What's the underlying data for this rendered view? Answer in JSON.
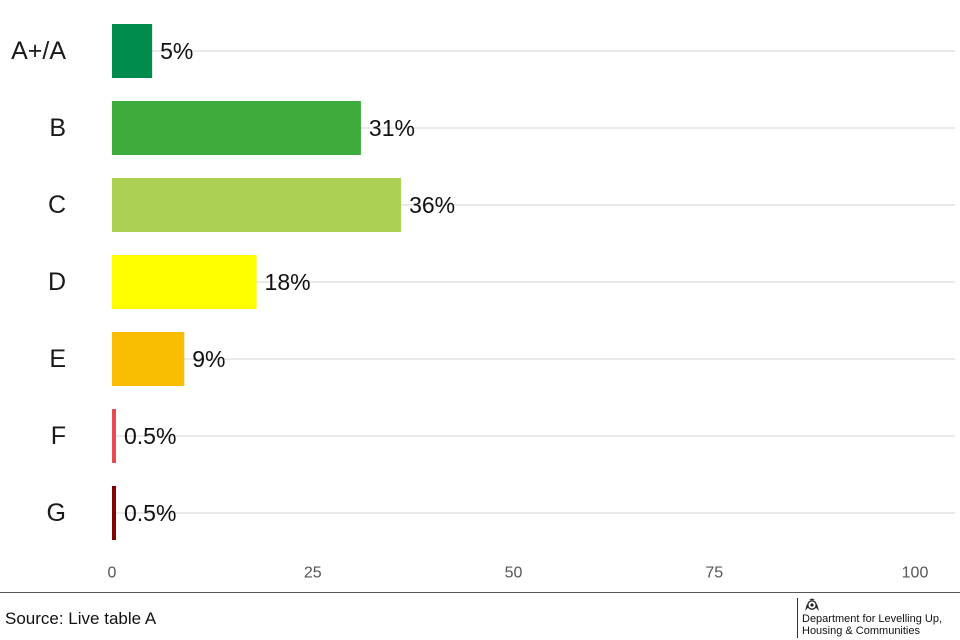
{
  "chart_data": {
    "type": "bar",
    "orientation": "horizontal",
    "categories": [
      "A+/A",
      "B",
      "C",
      "D",
      "E",
      "F",
      "G"
    ],
    "values": [
      5,
      31,
      36,
      18,
      9,
      0.5,
      0.5
    ],
    "value_labels": [
      "5%",
      "31%",
      "36%",
      "18%",
      "9%",
      "0.5%",
      "0.5%"
    ],
    "colors": [
      "#008a4b",
      "#3cab3c",
      "#acd152",
      "#ffff00",
      "#fbbd00",
      "#e94b53",
      "#800000"
    ],
    "xlim": [
      0,
      100
    ],
    "xticks": [
      0,
      25,
      50,
      75,
      100
    ],
    "grid": "horizontal lines at each category",
    "legend": "none"
  },
  "footer": {
    "source": "Source: Live table A",
    "logo_line1": "Department for Levelling Up,",
    "logo_line2": "Housing & Communities",
    "logo_icon": "royal-crest-icon"
  }
}
